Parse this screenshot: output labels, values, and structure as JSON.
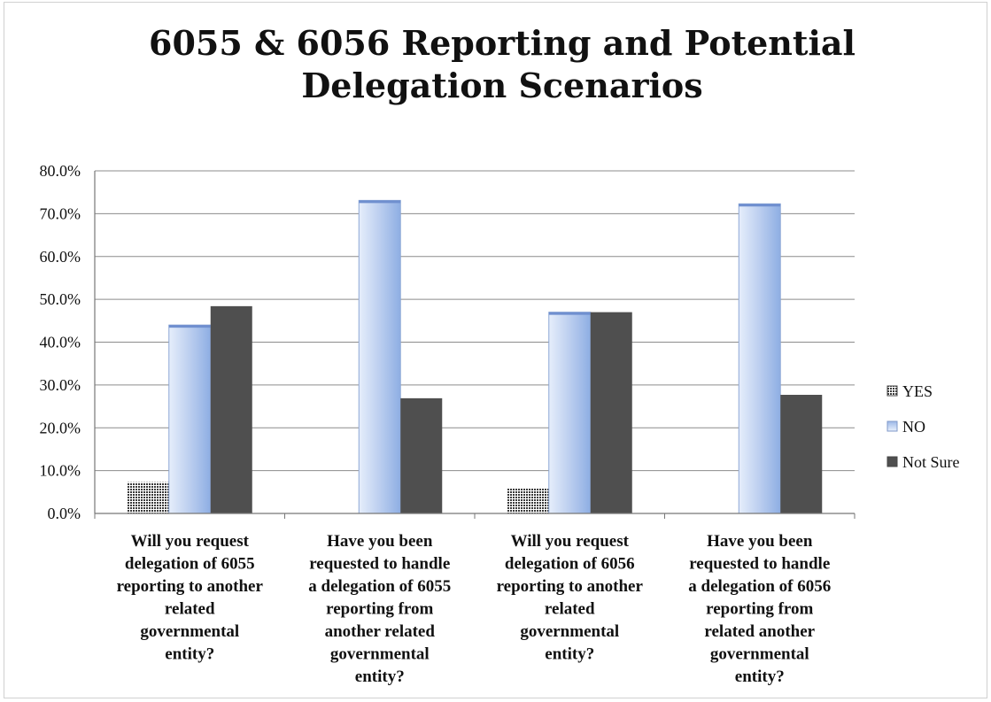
{
  "chart_data": {
    "type": "bar",
    "title": "6055 & 6056 Reporting and Potential Delegation Scenarios",
    "title_lines": [
      "6055 & 6056 Reporting and Potential",
      "Delegation Scenarios"
    ],
    "categories": [
      "Will you request delegation of 6055 reporting to another related governmental entity?",
      "Have you been requested to handle a delegation of 6055 reporting from another related governmental entity?",
      "Will you request delegation of 6056 reporting to another related governmental entity?",
      "Have you been requested to handle a delegation of 6056 reporting from related another governmental entity?"
    ],
    "category_label_lines": [
      [
        "Will you request",
        "delegation of 6055",
        "reporting to another",
        "related",
        "governmental",
        "entity?"
      ],
      [
        "Have you been",
        "requested to handle",
        "a delegation of 6055",
        "reporting from",
        "another related",
        "governmental",
        "entity?"
      ],
      [
        "Will you request",
        "delegation of 6056",
        "reporting to another",
        "related",
        "governmental",
        "entity?"
      ],
      [
        "Have you been",
        "requested to handle",
        "a delegation of 6056",
        "reporting from",
        "related another",
        "governmental",
        "entity?"
      ]
    ],
    "series": [
      {
        "name": "YES",
        "values": [
          7.3,
          0,
          5.8,
          0
        ],
        "color": "#444444",
        "pattern": "dotted"
      },
      {
        "name": "NO",
        "values": [
          44.0,
          73.1,
          47.0,
          72.3
        ],
        "color": "#a9c1ea",
        "pattern": "gradient"
      },
      {
        "name": "Not Sure",
        "values": [
          48.4,
          26.9,
          47.0,
          27.7
        ],
        "color": "#4d4d4d",
        "pattern": "solid"
      }
    ],
    "ylim": [
      0,
      80
    ],
    "yticks": [
      0,
      10,
      20,
      30,
      40,
      50,
      60,
      70,
      80
    ],
    "ytick_labels": [
      "0.0%",
      "10.0%",
      "20.0%",
      "30.0%",
      "40.0%",
      "50.0%",
      "60.0%",
      "70.0%",
      "80.0%"
    ],
    "grid": true,
    "legend_position": "right",
    "xlabel": "",
    "ylabel": ""
  }
}
